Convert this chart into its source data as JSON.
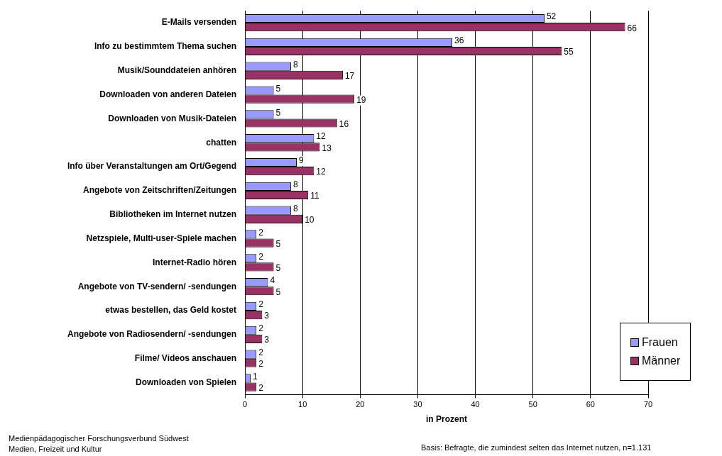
{
  "chart_data": {
    "type": "bar",
    "orientation": "horizontal",
    "xlabel": "in Prozent",
    "categories": [
      "E-Mails versenden",
      "Info zu bestimmtem Thema suchen",
      "Musik/Sounddateien anhören",
      "Downloaden von anderen Dateien",
      "Downloaden von Musik-Dateien",
      "chatten",
      "Info über Veranstaltungen am Ort/Gegend",
      "Angebote von Zeitschriften/Zeitungen",
      "Bibliotheken im Internet nutzen",
      "Netzspiele, Multi-user-Spiele machen",
      "Internet-Radio hören",
      "Angebote von TV-sendern/ -sendungen",
      "etwas bestellen, das Geld kostet",
      "Angebote von Radiosendern/ -sendungen",
      "Filme/ Videos anschauen",
      "Downloaden von Spielen"
    ],
    "series": [
      {
        "name": "Frauen",
        "color": "#9999ff",
        "values": [
          52,
          36,
          8,
          5,
          5,
          12,
          9,
          8,
          8,
          2,
          2,
          4,
          2,
          2,
          2,
          1
        ]
      },
      {
        "name": "Männer",
        "color": "#993366",
        "values": [
          66,
          55,
          17,
          19,
          16,
          13,
          12,
          11,
          10,
          5,
          5,
          5,
          3,
          3,
          2,
          2
        ]
      }
    ],
    "xlim": [
      0,
      70
    ],
    "xticks": [
      0,
      10,
      20,
      30,
      40,
      50,
      60,
      70
    ],
    "grid": "x",
    "legend": "bottom right",
    "data_labels": true,
    "annotations": [
      "Medienpädagogischer Forschungsverbund Südwest",
      "Medien, Freizeit und Kultur",
      "Basis: Befragte, die zumindest selten das Internet nutzen, n=1.131"
    ]
  }
}
